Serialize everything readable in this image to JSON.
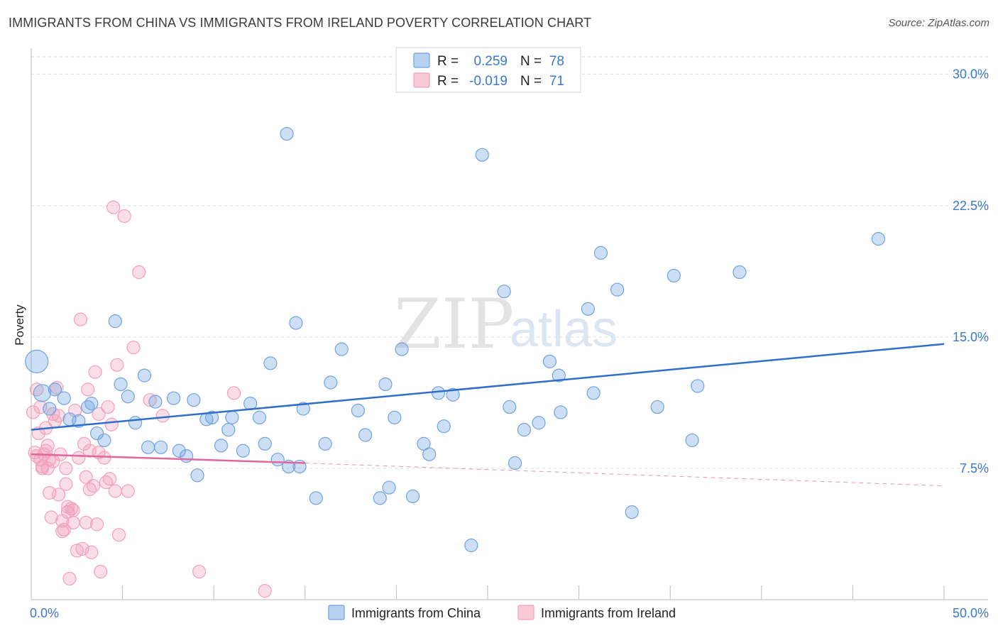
{
  "title": "IMMIGRANTS FROM CHINA VS IMMIGRANTS FROM IRELAND POVERTY CORRELATION CHART",
  "source": "Source: ZipAtlas.com",
  "watermark": {
    "zip": "ZIP",
    "atlas": "atlas"
  },
  "legend": {
    "china": {
      "r_label": "R =",
      "r_value": "0.259",
      "n_label": "N =",
      "n_value": "78"
    },
    "ireland": {
      "r_label": "R =",
      "r_value": "-0.019",
      "n_label": "N =",
      "n_value": "71"
    }
  },
  "chart_data": {
    "type": "scatter",
    "title": "IMMIGRANTS FROM CHINA VS IMMIGRANTS FROM IRELAND POVERTY CORRELATION CHART",
    "xlabel": "",
    "ylabel": "Poverty",
    "xlim": [
      0,
      50
    ],
    "ylim": [
      0,
      31
    ],
    "x_tick_labels": [
      "0.0%",
      "50.0%"
    ],
    "y_ticks": [
      7.5,
      15.0,
      22.5,
      30.0
    ],
    "y_tick_labels": [
      "7.5%",
      "15.0%",
      "22.5%",
      "30.0%"
    ],
    "grid": "horizontal dashed",
    "legend_position": "top-center",
    "colors": {
      "china": "#6fa3e0",
      "china_line": "#2f6fc9",
      "ireland": "#f2a0bb",
      "ireland_line": "#e0679a"
    },
    "series": [
      {
        "name": "Immigrants from China",
        "trend": {
          "x": [
            0,
            50
          ],
          "y": [
            9.7,
            14.6
          ]
        },
        "points": [
          [
            0.3,
            13.6,
            16
          ],
          [
            0.6,
            11.8,
            12
          ],
          [
            1.0,
            10.9,
            9
          ],
          [
            1.3,
            12.0,
            9
          ],
          [
            1.8,
            11.5,
            9
          ],
          [
            2.1,
            10.3,
            9
          ],
          [
            2.6,
            10.2,
            9
          ],
          [
            3.1,
            11.0,
            9
          ],
          [
            3.3,
            11.2,
            9
          ],
          [
            3.6,
            9.5,
            9
          ],
          [
            4.0,
            9.1,
            9
          ],
          [
            4.6,
            15.9,
            9
          ],
          [
            4.9,
            12.3,
            9
          ],
          [
            5.3,
            11.6,
            9
          ],
          [
            5.7,
            10.1,
            9
          ],
          [
            6.2,
            12.8,
            9
          ],
          [
            6.4,
            8.7,
            9
          ],
          [
            6.8,
            11.3,
            9
          ],
          [
            7.1,
            8.7,
            9
          ],
          [
            7.8,
            11.5,
            9
          ],
          [
            8.1,
            8.5,
            9
          ],
          [
            8.5,
            8.2,
            9
          ],
          [
            8.9,
            11.4,
            9
          ],
          [
            9.1,
            7.1,
            9
          ],
          [
            9.6,
            10.3,
            9
          ],
          [
            9.9,
            10.4,
            9
          ],
          [
            10.4,
            8.8,
            9
          ],
          [
            10.8,
            9.7,
            9
          ],
          [
            11.0,
            10.4,
            9
          ],
          [
            11.6,
            8.5,
            9
          ],
          [
            12.0,
            11.2,
            9
          ],
          [
            12.5,
            10.4,
            9
          ],
          [
            12.8,
            8.9,
            9
          ],
          [
            13.1,
            13.5,
            9
          ],
          [
            13.5,
            8.0,
            9
          ],
          [
            14.0,
            26.6,
            9
          ],
          [
            14.1,
            7.6,
            9
          ],
          [
            14.5,
            15.8,
            9
          ],
          [
            14.7,
            7.6,
            9
          ],
          [
            14.9,
            10.9,
            9
          ],
          [
            15.6,
            5.8,
            9
          ],
          [
            16.1,
            8.9,
            9
          ],
          [
            16.4,
            12.4,
            9
          ],
          [
            17.0,
            14.3,
            9
          ],
          [
            17.9,
            10.8,
            9
          ],
          [
            18.3,
            9.4,
            9
          ],
          [
            19.1,
            5.8,
            9
          ],
          [
            19.4,
            12.3,
            9
          ],
          [
            19.6,
            6.4,
            9
          ],
          [
            19.9,
            10.4,
            9
          ],
          [
            20.3,
            14.3,
            9
          ],
          [
            20.9,
            5.9,
            9
          ],
          [
            21.5,
            8.9,
            9
          ],
          [
            21.8,
            8.3,
            9
          ],
          [
            22.3,
            11.8,
            9
          ],
          [
            22.6,
            9.9,
            9
          ],
          [
            23.1,
            11.7,
            9
          ],
          [
            24.1,
            3.1,
            9
          ],
          [
            24.7,
            25.4,
            9
          ],
          [
            25.9,
            17.6,
            9
          ],
          [
            26.2,
            11.0,
            9
          ],
          [
            26.5,
            7.8,
            9
          ],
          [
            27.0,
            9.7,
            9
          ],
          [
            27.8,
            10.1,
            9
          ],
          [
            28.4,
            13.6,
            9
          ],
          [
            28.9,
            12.8,
            9
          ],
          [
            29.0,
            10.7,
            9
          ],
          [
            30.5,
            16.6,
            9
          ],
          [
            30.8,
            11.8,
            9
          ],
          [
            31.2,
            19.8,
            9
          ],
          [
            32.1,
            17.7,
            9
          ],
          [
            32.9,
            5.0,
            9
          ],
          [
            34.3,
            11.0,
            9
          ],
          [
            35.2,
            18.5,
            9
          ],
          [
            36.2,
            9.1,
            9
          ],
          [
            36.5,
            12.2,
            9
          ],
          [
            38.8,
            18.7,
            9
          ],
          [
            46.4,
            20.6,
            9
          ]
        ]
      },
      {
        "name": "Immigrants from Ireland",
        "trend": {
          "x": [
            0,
            15
          ],
          "y": [
            8.3,
            7.8
          ],
          "dashed_extension": {
            "x": [
              15,
              50
            ],
            "y": [
              7.8,
              6.5
            ]
          }
        },
        "points": [
          [
            0.1,
            10.7,
            9
          ],
          [
            0.2,
            8.4,
            9
          ],
          [
            0.3,
            12.0,
            9
          ],
          [
            0.4,
            9.5,
            9
          ],
          [
            0.5,
            8.0,
            9
          ],
          [
            0.6,
            7.5,
            9
          ],
          [
            0.7,
            8.3,
            9
          ],
          [
            0.8,
            9.8,
            9
          ],
          [
            0.9,
            7.5,
            9
          ],
          [
            0.9,
            8.8,
            9
          ],
          [
            1.0,
            6.1,
            9
          ],
          [
            1.1,
            4.7,
            9
          ],
          [
            1.2,
            7.9,
            9
          ],
          [
            1.3,
            10.2,
            9
          ],
          [
            1.4,
            12.1,
            9
          ],
          [
            1.5,
            10.5,
            9
          ],
          [
            1.6,
            8.3,
            9
          ],
          [
            1.7,
            4.5,
            9
          ],
          [
            1.7,
            3.9,
            9
          ],
          [
            1.8,
            4.0,
            9
          ],
          [
            1.9,
            6.6,
            9
          ],
          [
            2.0,
            5.0,
            9
          ],
          [
            2.0,
            5.3,
            9
          ],
          [
            2.1,
            1.2,
            9
          ],
          [
            2.2,
            5.2,
            9
          ],
          [
            2.3,
            4.4,
            9
          ],
          [
            2.4,
            10.8,
            9
          ],
          [
            2.5,
            2.8,
            9
          ],
          [
            2.6,
            8.1,
            9
          ],
          [
            2.7,
            16.0,
            9
          ],
          [
            2.8,
            2.9,
            9
          ],
          [
            2.9,
            8.9,
            9
          ],
          [
            3.0,
            4.4,
            9
          ],
          [
            3.1,
            12.0,
            9
          ],
          [
            3.2,
            8.5,
            9
          ],
          [
            3.2,
            6.3,
            9
          ],
          [
            3.3,
            2.7,
            9
          ],
          [
            3.4,
            6.5,
            9
          ],
          [
            3.5,
            13.0,
            9
          ],
          [
            3.6,
            4.3,
            9
          ],
          [
            3.7,
            8.4,
            9
          ],
          [
            3.7,
            10.6,
            9
          ],
          [
            3.8,
            1.6,
            9
          ],
          [
            4.0,
            8.1,
            9
          ],
          [
            4.1,
            6.7,
            9
          ],
          [
            4.2,
            11.0,
            9
          ],
          [
            4.3,
            6.9,
            9
          ],
          [
            4.4,
            10.0,
            9
          ],
          [
            4.5,
            22.4,
            9
          ],
          [
            4.6,
            6.2,
            9
          ],
          [
            4.7,
            13.4,
            9
          ],
          [
            4.8,
            3.7,
            9
          ],
          [
            5.1,
            21.9,
            9
          ],
          [
            5.3,
            6.2,
            9
          ],
          [
            5.6,
            14.4,
            9
          ],
          [
            5.9,
            18.7,
            9
          ],
          [
            6.5,
            11.4,
            9
          ],
          [
            7.2,
            10.5,
            9
          ],
          [
            9.2,
            1.6,
            9
          ],
          [
            11.1,
            11.8,
            9
          ],
          [
            12.8,
            0.5,
            9
          ],
          [
            0.3,
            8.2,
            9
          ],
          [
            0.6,
            7.6,
            9
          ],
          [
            1.0,
            8.0,
            9
          ],
          [
            1.2,
            10.6,
            9
          ],
          [
            0.8,
            8.5,
            9
          ],
          [
            1.5,
            6.0,
            9
          ],
          [
            2.3,
            5.1,
            9
          ],
          [
            3.0,
            7.0,
            9
          ],
          [
            0.5,
            11.0,
            9
          ],
          [
            1.9,
            7.5,
            9
          ]
        ]
      }
    ]
  },
  "bottom_legend": {
    "china": "Immigrants from China",
    "ireland": "Immigrants from Ireland"
  }
}
